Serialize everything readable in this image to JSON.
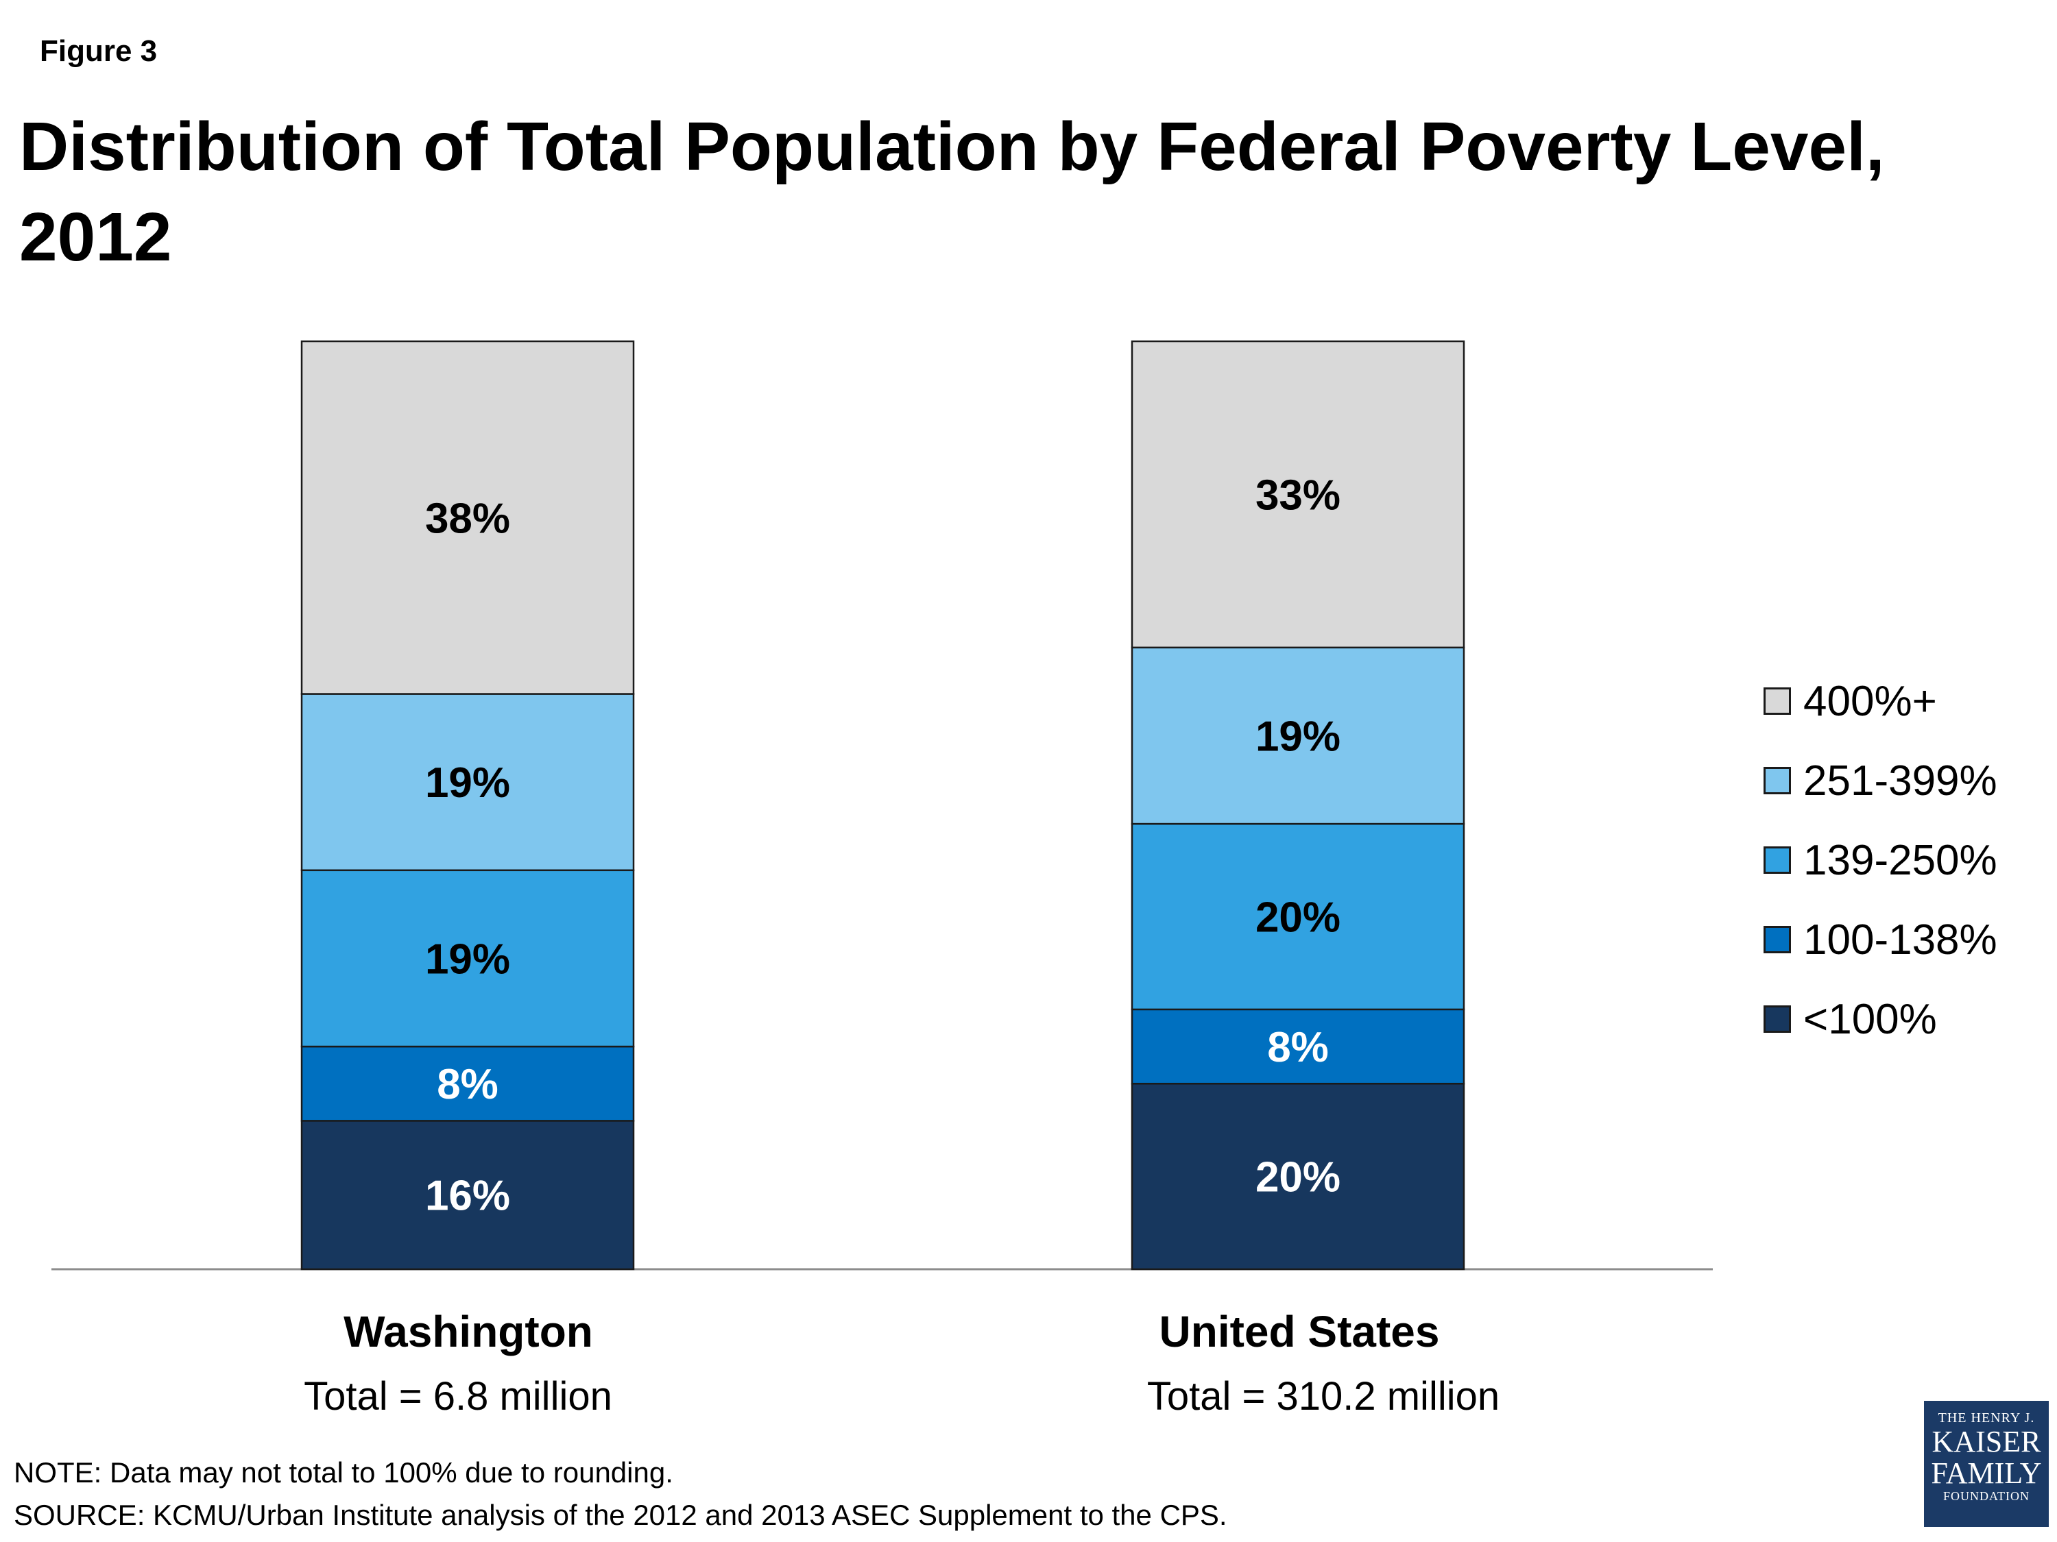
{
  "figure_label": "Figure 3",
  "title": "Distribution of Total Population by Federal Poverty Level, 2012",
  "legend_title": "",
  "categories_meta": [
    {
      "name": "Washington",
      "total": "Total = 6.8 million"
    },
    {
      "name": "United States",
      "total": "Total = 310.2 million"
    }
  ],
  "footnote": {
    "note": "NOTE: Data may not total to 100% due to rounding.",
    "source": "SOURCE: KCMU/Urban Institute analysis of the 2012 and 2013 ASEC Supplement to the CPS."
  },
  "logo": {
    "line1": "THE HENRY J.",
    "line2": "KAISER",
    "line3": "FAMILY",
    "line4": "FOUNDATION"
  },
  "chart_data": {
    "type": "bar",
    "stacked": true,
    "title": "Distribution of Total Population by Federal Poverty Level, 2012",
    "xlabel": "",
    "ylabel": "",
    "ylim": [
      0,
      100
    ],
    "grid": false,
    "legend_position": "right",
    "categories": [
      "Washington",
      "United States"
    ],
    "series": [
      {
        "name": "<100%",
        "values": [
          16,
          20
        ],
        "labels": [
          "16%",
          "20%"
        ],
        "color": "#17375e",
        "label_color": "#ffffff"
      },
      {
        "name": "100-138%",
        "values": [
          8,
          8
        ],
        "labels": [
          "8%",
          "8%"
        ],
        "color": "#0070c0",
        "label_color": "#ffffff"
      },
      {
        "name": "139-250%",
        "values": [
          19,
          20
        ],
        "labels": [
          "19%",
          "20%"
        ],
        "color": "#31a2e1",
        "label_color": "#000000"
      },
      {
        "name": "251-399%",
        "values": [
          19,
          19
        ],
        "labels": [
          "19%",
          "19%"
        ],
        "color": "#7fc6ee",
        "label_color": "#000000"
      },
      {
        "name": "400%+",
        "values": [
          38,
          33
        ],
        "labels": [
          "38%",
          "33%"
        ],
        "color": "#d9d9d9",
        "label_color": "#000000"
      }
    ]
  }
}
